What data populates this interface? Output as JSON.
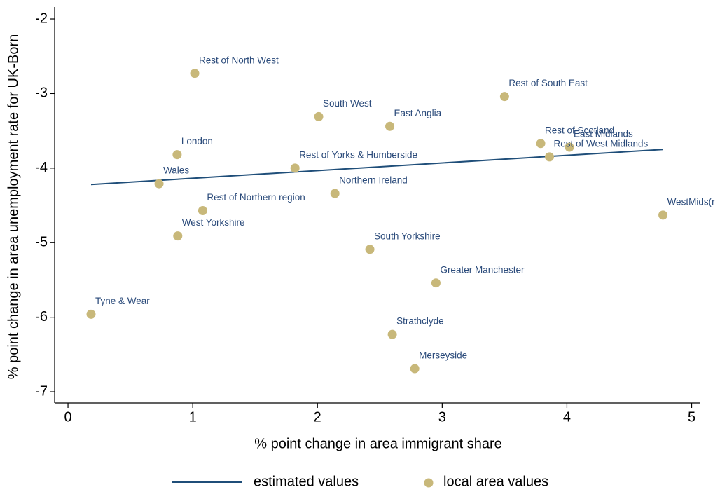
{
  "chart_data": {
    "type": "scatter",
    "x_label": "% point change in area immigrant share",
    "y_label": "% point change in area unemployment rate for UK-Born",
    "xlim": [
      -0.107,
      5.07
    ],
    "ylim": [
      -7.15,
      -1.84
    ],
    "xticks": [
      0,
      1,
      2,
      3,
      4,
      5
    ],
    "yticks": [
      -2,
      -3,
      -4,
      -5,
      -6,
      -7
    ],
    "series": [
      {
        "name": "estimated values",
        "type": "line",
        "color": "#1f4e79",
        "x": [
          0.185,
          4.77
        ],
        "values": [
          -4.22,
          -3.75
        ]
      },
      {
        "name": "local area values",
        "type": "scatter",
        "color": "#c8b87a",
        "labels": [
          "Rest of North West",
          "South West",
          "East Anglia",
          "Rest of South East",
          "London",
          "Rest of Scotland",
          "East Midlands",
          "Rest of West Midlands",
          "Rest of Yorks & Humberside",
          "Wales",
          "Northern Ireland",
          "Rest of Northern region",
          "WestMids(r",
          "West Yorkshire",
          "South Yorkshire",
          "Greater Manchester",
          "Tyne & Wear",
          "Strathclyde",
          "Merseyside"
        ],
        "x": [
          1.016,
          2.01,
          2.58,
          3.5,
          0.875,
          3.79,
          4.02,
          3.86,
          1.82,
          0.73,
          2.14,
          1.08,
          4.77,
          0.88,
          2.42,
          2.95,
          0.185,
          2.6,
          2.78
        ],
        "values": [
          -2.73,
          -3.31,
          -3.44,
          -3.04,
          -3.82,
          -3.67,
          -3.72,
          -3.85,
          -4.0,
          -4.21,
          -4.34,
          -4.57,
          -4.63,
          -4.91,
          -5.09,
          -5.54,
          -5.96,
          -6.23,
          -6.69
        ]
      }
    ]
  }
}
